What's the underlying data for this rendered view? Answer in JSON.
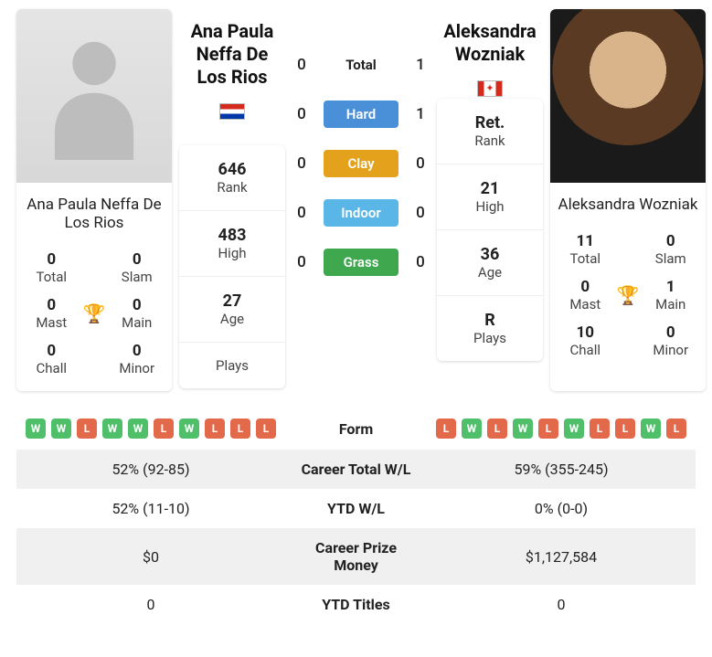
{
  "p1": {
    "name": "Ana Paula Neffa De Los Rios",
    "flag": "py",
    "stats": {
      "total": {
        "v": "0",
        "l": "Total"
      },
      "slam": {
        "v": "0",
        "l": "Slam"
      },
      "mast": {
        "v": "0",
        "l": "Mast"
      },
      "main": {
        "v": "0",
        "l": "Main"
      },
      "chall": {
        "v": "0",
        "l": "Chall"
      },
      "minor": {
        "v": "0",
        "l": "Minor"
      }
    },
    "info": {
      "rank": {
        "v": "646",
        "l": "Rank"
      },
      "high": {
        "v": "483",
        "l": "High"
      },
      "age": {
        "v": "27",
        "l": "Age"
      },
      "plays": {
        "v": "",
        "l": "Plays"
      }
    }
  },
  "p2": {
    "name": "Aleksandra Wozniak",
    "flag": "ca",
    "stats": {
      "total": {
        "v": "11",
        "l": "Total"
      },
      "slam": {
        "v": "0",
        "l": "Slam"
      },
      "mast": {
        "v": "0",
        "l": "Mast"
      },
      "main": {
        "v": "1",
        "l": "Main"
      },
      "chall": {
        "v": "10",
        "l": "Chall"
      },
      "minor": {
        "v": "0",
        "l": "Minor"
      }
    },
    "info": {
      "rank": {
        "v": "Ret.",
        "l": "Rank"
      },
      "high": {
        "v": "21",
        "l": "High"
      },
      "age": {
        "v": "36",
        "l": "Age"
      },
      "plays": {
        "v": "R",
        "l": "Plays"
      }
    }
  },
  "h2h": {
    "total": {
      "label": "Total",
      "p1": "0",
      "p2": "1",
      "color": ""
    },
    "hard": {
      "label": "Hard",
      "p1": "0",
      "p2": "1",
      "color": "#4a90d9"
    },
    "clay": {
      "label": "Clay",
      "p1": "0",
      "p2": "0",
      "color": "#e4a11b"
    },
    "indoor": {
      "label": "Indoor",
      "p1": "0",
      "p2": "0",
      "color": "#5bb6e8"
    },
    "grass": {
      "label": "Grass",
      "p1": "0",
      "p2": "0",
      "color": "#3fa84f"
    }
  },
  "form": {
    "label": "Form",
    "p1": [
      "W",
      "W",
      "L",
      "W",
      "W",
      "L",
      "W",
      "L",
      "L",
      "L"
    ],
    "p2": [
      "L",
      "W",
      "L",
      "W",
      "L",
      "W",
      "L",
      "L",
      "W",
      "L"
    ]
  },
  "rows": {
    "careerWL": {
      "label": "Career Total W/L",
      "p1": "52% (92-85)",
      "p2": "59% (355-245)"
    },
    "ytdWL": {
      "label": "YTD W/L",
      "p1": "52% (11-10)",
      "p2": "0% (0-0)"
    },
    "prize": {
      "label": "Career Prize Money",
      "p1": "$0",
      "p2": "$1,127,584"
    },
    "ytdTitles": {
      "label": "YTD Titles",
      "p1": "0",
      "p2": "0"
    }
  }
}
